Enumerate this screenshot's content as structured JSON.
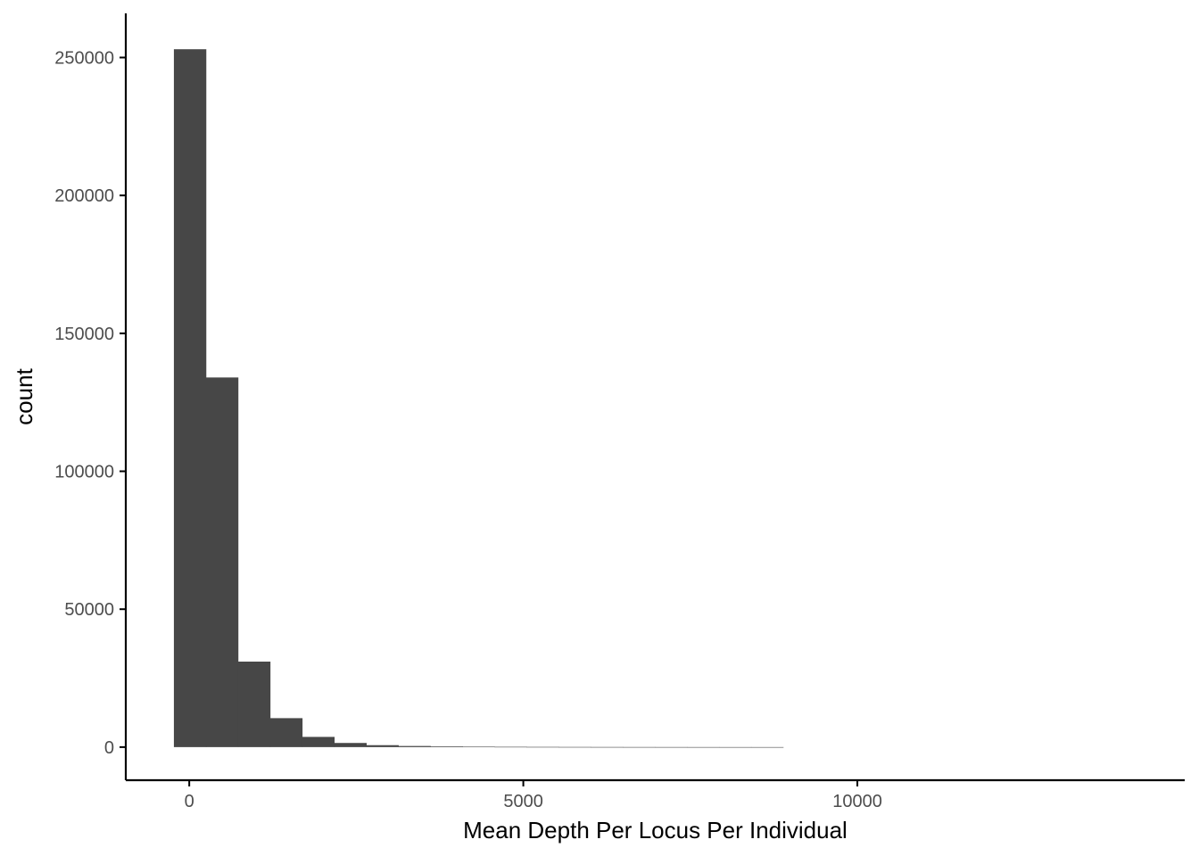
{
  "chart_data": {
    "type": "bar",
    "subtype": "histogram",
    "title": "",
    "xlabel": "Mean Depth Per Locus Per Individual",
    "ylabel": "count",
    "bar_color": "#474747",
    "grid": false,
    "legend": "none",
    "xlim": [
      -950,
      14900
    ],
    "ylim": [
      -12000,
      266000
    ],
    "x_ticks": [
      {
        "value": 0,
        "label": "0"
      },
      {
        "value": 5000,
        "label": "5000"
      },
      {
        "value": 10000,
        "label": "10000"
      }
    ],
    "y_ticks": [
      {
        "value": 0,
        "label": "0"
      },
      {
        "value": 50000,
        "label": "50000"
      },
      {
        "value": 100000,
        "label": "100000"
      },
      {
        "value": 150000,
        "label": "150000"
      },
      {
        "value": 200000,
        "label": "200000"
      },
      {
        "value": 250000,
        "label": "250000"
      }
    ],
    "bins": [
      {
        "x0": -230,
        "x1": 250,
        "count": 253000
      },
      {
        "x0": 250,
        "x1": 730,
        "count": 134000
      },
      {
        "x0": 730,
        "x1": 1210,
        "count": 31000
      },
      {
        "x0": 1210,
        "x1": 1690,
        "count": 10500
      },
      {
        "x0": 1690,
        "x1": 2170,
        "count": 3700
      },
      {
        "x0": 2170,
        "x1": 2650,
        "count": 1500
      },
      {
        "x0": 2650,
        "x1": 3130,
        "count": 700
      },
      {
        "x0": 3130,
        "x1": 3610,
        "count": 400
      },
      {
        "x0": 3610,
        "x1": 4090,
        "count": 250
      },
      {
        "x0": 4090,
        "x1": 4570,
        "count": 150
      },
      {
        "x0": 4570,
        "x1": 5050,
        "count": 100
      },
      {
        "x0": 5050,
        "x1": 5530,
        "count": 70
      },
      {
        "x0": 5530,
        "x1": 6010,
        "count": 50
      },
      {
        "x0": 6010,
        "x1": 6490,
        "count": 35
      },
      {
        "x0": 6490,
        "x1": 6970,
        "count": 25
      },
      {
        "x0": 6970,
        "x1": 7450,
        "count": 18
      },
      {
        "x0": 7450,
        "x1": 7930,
        "count": 12
      },
      {
        "x0": 7930,
        "x1": 8410,
        "count": 8
      },
      {
        "x0": 8410,
        "x1": 8890,
        "count": 5
      }
    ]
  }
}
